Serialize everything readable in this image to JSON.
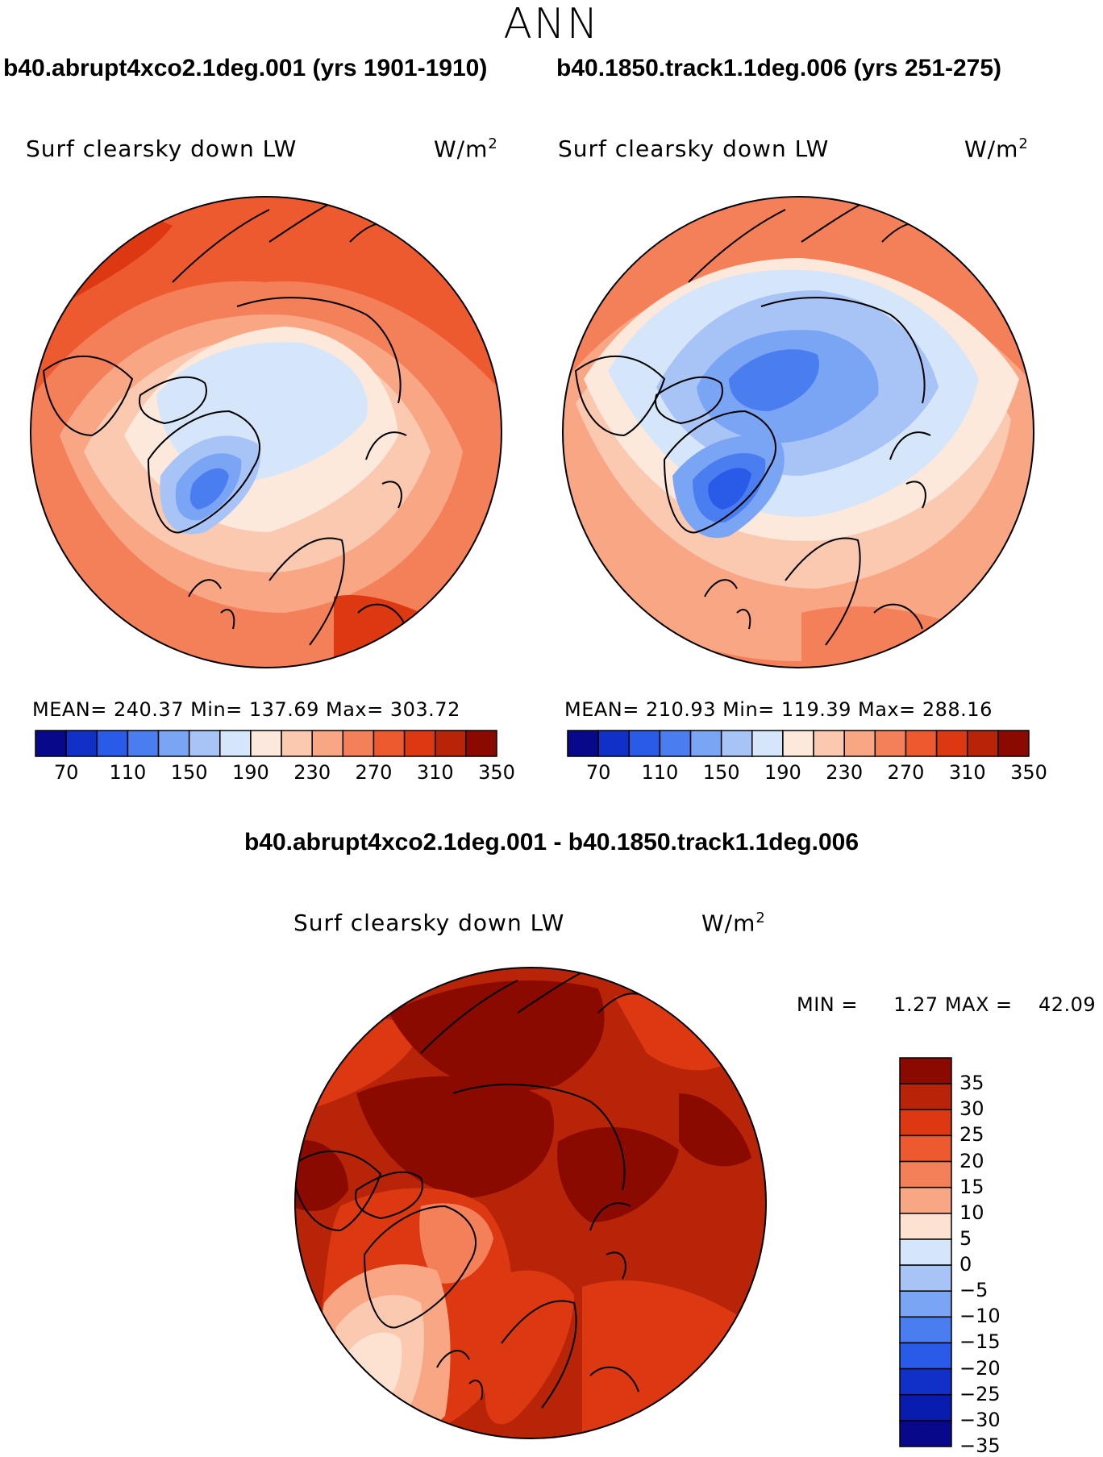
{
  "header": {
    "title": "ANN"
  },
  "panels": [
    {
      "case_title": "b40.abrupt4xco2.1deg.001 (yrs 1901-1910)",
      "variable": "Surf clearsky down LW",
      "units_base": "W/m",
      "units_exp": "2",
      "stats": "MEAN= 240.37   Min= 137.69   Max= 303.72",
      "colorbar_ticks": [
        "70",
        "110",
        "150",
        "190",
        "230",
        "270",
        "310",
        "350"
      ]
    },
    {
      "case_title": "b40.1850.track1.1deg.006 (yrs 251-275)",
      "variable": "Surf clearsky down LW",
      "units_base": "W/m",
      "units_exp": "2",
      "stats": "MEAN= 210.93   Min= 119.39   Max= 288.16",
      "colorbar_ticks": [
        "70",
        "110",
        "150",
        "190",
        "230",
        "270",
        "310",
        "350"
      ]
    }
  ],
  "difference": {
    "title": "b40.abrupt4xco2.1deg.001 - b40.1850.track1.1deg.006",
    "variable": "Surf clearsky down LW",
    "units_base": "W/m",
    "units_exp": "2",
    "min_label": "MIN =",
    "min_value": "1.27",
    "max_label": "MAX =",
    "max_value": "42.09",
    "colorbar_ticks": [
      "35",
      "30",
      "25",
      "20",
      "15",
      "10",
      "5",
      "0",
      "−5",
      "−10",
      "−15",
      "−20",
      "−25",
      "−30",
      "−35"
    ]
  },
  "colors": {
    "main_scale": [
      "#08088a",
      "#1030c8",
      "#2a5ae8",
      "#4a7ef0",
      "#7aa4f4",
      "#a8c4f6",
      "#d6e6fa",
      "#fde8dc",
      "#fbc8b0",
      "#f8a684",
      "#f4805a",
      "#ee5a30",
      "#dc3812",
      "#b82408",
      "#8a0a00"
    ],
    "diff_scale": [
      "#8a0a00",
      "#b82408",
      "#dc3812",
      "#ee5a30",
      "#f4805a",
      "#f8a684",
      "#fde2d2",
      "#d6e6fa",
      "#a8c4f6",
      "#7aa4f4",
      "#4a7ef0",
      "#2a5ae8",
      "#1030c8",
      "#081cb0",
      "#08088a"
    ]
  }
}
